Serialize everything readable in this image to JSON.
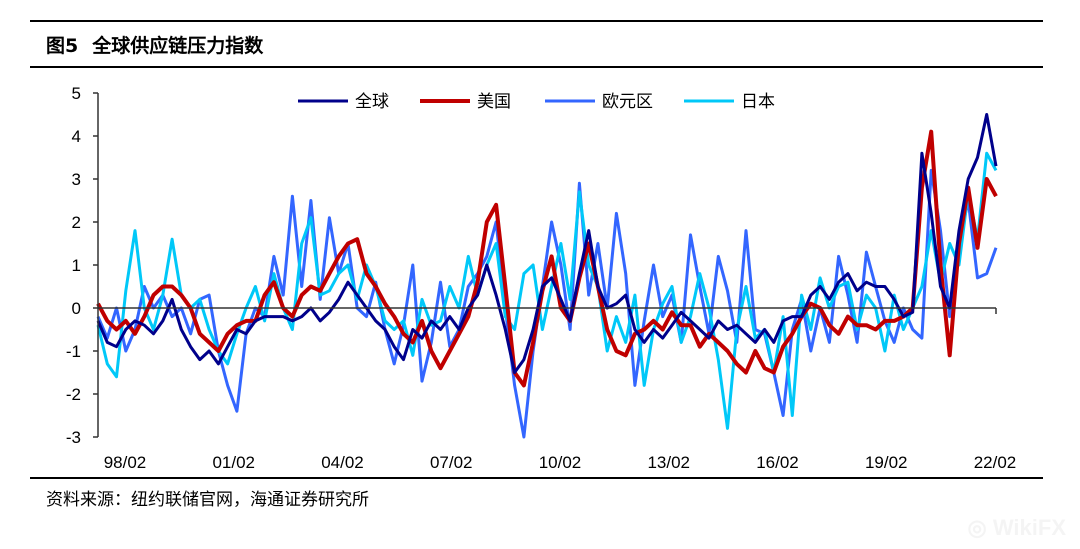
{
  "header": {
    "figure_number": "图5",
    "title": "全球供应链压力指数"
  },
  "footer": {
    "source": "资料来源：纽约联储官网，海通证券研究所"
  },
  "watermark": "WikiFX",
  "colors": {
    "global": "#00008B",
    "us": "#C00000",
    "euro": "#3366FF",
    "japan": "#00C8F8"
  },
  "chart_data": {
    "type": "line",
    "title": "全球供应链压力指数",
    "xlabel": "",
    "ylabel": "",
    "frequency": "quarterly, 1998Q1–2022Q2",
    "ylim": [
      -3,
      5
    ],
    "yticks": [
      "5",
      "4",
      "3",
      "2",
      "1",
      "0",
      "-1",
      "-2",
      "-3"
    ],
    "xticks": [
      "98/02",
      "01/02",
      "04/02",
      "07/02",
      "10/02",
      "13/02",
      "16/02",
      "19/02",
      "22/02"
    ],
    "legend": {
      "placement": "top-center"
    },
    "grid": false,
    "series": [
      {
        "name": "全球",
        "key": "global",
        "values": [
          -0.3,
          -0.8,
          -0.9,
          -0.5,
          -0.3,
          -0.4,
          -0.6,
          -0.3,
          0.2,
          -0.5,
          -0.9,
          -1.2,
          -1.0,
          -1.3,
          -0.9,
          -0.5,
          -0.6,
          -0.3,
          -0.2,
          -0.2,
          -0.2,
          -0.3,
          -0.2,
          0.0,
          -0.3,
          -0.1,
          0.2,
          0.6,
          0.3,
          0.0,
          -0.3,
          -0.5,
          -0.9,
          -1.2,
          -0.5,
          -0.7,
          -0.3,
          -0.5,
          -0.2,
          -0.5,
          0.0,
          0.3,
          1.0,
          0.3,
          -0.5,
          -1.5,
          -1.2,
          -0.5,
          0.5,
          0.7,
          0.2,
          -0.3,
          0.8,
          1.8,
          0.5,
          0.0,
          0.1,
          0.3,
          -0.5,
          -0.8,
          -0.5,
          -0.7,
          -0.4,
          -0.1,
          -0.3,
          -0.5,
          -0.7,
          -0.3,
          -0.5,
          -0.4,
          -0.6,
          -0.8,
          -0.5,
          -0.8,
          -0.3,
          -0.2,
          -0.2,
          0.3,
          0.5,
          0.2,
          0.6,
          0.8,
          0.4,
          0.6,
          0.5,
          0.5,
          0.2,
          -0.2,
          -0.1,
          3.6,
          2.2,
          0.5,
          0.0,
          1.8,
          3.0,
          3.5,
          4.5,
          3.3
        ]
      },
      {
        "name": "美国",
        "key": "us",
        "values": [
          0.1,
          -0.3,
          -0.5,
          -0.3,
          -0.6,
          -0.2,
          0.3,
          0.5,
          0.5,
          0.3,
          0.0,
          -0.6,
          -0.8,
          -1.0,
          -0.6,
          -0.4,
          -0.3,
          -0.3,
          0.3,
          0.6,
          0.0,
          -0.2,
          0.3,
          0.5,
          0.4,
          0.8,
          1.2,
          1.5,
          1.6,
          0.8,
          0.5,
          0.1,
          -0.2,
          -0.6,
          -0.8,
          -0.3,
          -1.0,
          -1.4,
          -1.0,
          -0.6,
          -0.2,
          0.6,
          2.0,
          2.4,
          0.5,
          -1.5,
          -1.8,
          -0.8,
          0.4,
          1.2,
          0.0,
          -0.3,
          0.7,
          1.5,
          0.5,
          -0.5,
          -1.0,
          -1.1,
          -0.6,
          -0.5,
          -0.3,
          -0.5,
          -0.1,
          -0.4,
          -0.4,
          -0.9,
          -0.6,
          -0.8,
          -1.0,
          -1.3,
          -1.5,
          -1.0,
          -1.4,
          -1.5,
          -0.9,
          -0.6,
          -0.2,
          0.1,
          0.0,
          -0.4,
          -0.6,
          -0.2,
          -0.4,
          -0.4,
          -0.5,
          -0.3,
          -0.3,
          -0.2,
          0.0,
          2.8,
          4.1,
          1.0,
          -1.1,
          1.5,
          2.8,
          1.4,
          3.0,
          2.6
        ]
      },
      {
        "name": "欧元区",
        "key": "euro",
        "values": [
          -0.2,
          -0.7,
          0.0,
          -1.0,
          -0.5,
          0.5,
          0.0,
          0.3,
          -0.2,
          0.0,
          -0.6,
          0.2,
          0.3,
          -1.0,
          -1.8,
          -2.4,
          -0.6,
          0.0,
          -0.2,
          1.2,
          0.3,
          2.6,
          0.5,
          2.5,
          0.2,
          2.1,
          0.8,
          1.5,
          0.0,
          -0.2,
          0.6,
          -0.5,
          -1.3,
          -0.4,
          1.0,
          -1.7,
          -0.8,
          0.6,
          -0.9,
          -0.5,
          0.5,
          0.8,
          1.2,
          2.0,
          0.0,
          -1.8,
          -3.0,
          -1.0,
          0.5,
          2.0,
          1.0,
          -0.5,
          2.9,
          0.3,
          1.5,
          0.0,
          2.2,
          0.8,
          -1.8,
          -0.3,
          1.0,
          -0.2,
          0.3,
          -0.8,
          1.7,
          0.5,
          -0.6,
          1.2,
          0.4,
          -0.8,
          1.8,
          -0.5,
          -0.6,
          -1.5,
          -2.5,
          -0.5,
          0.2,
          -1.0,
          0.0,
          -0.8,
          1.2,
          0.3,
          -0.8,
          1.3,
          0.5,
          -0.3,
          -0.8,
          0.0,
          -0.5,
          -0.7,
          3.2,
          1.8,
          -0.2,
          1.5,
          2.5,
          0.7,
          0.8,
          1.4
        ]
      },
      {
        "name": "日本",
        "key": "japan",
        "values": [
          -0.4,
          -1.3,
          -1.6,
          0.4,
          1.8,
          0.0,
          -0.5,
          0.3,
          1.6,
          0.3,
          0.0,
          0.2,
          -0.5,
          -1.0,
          -1.3,
          -0.6,
          0.0,
          0.5,
          -0.3,
          0.8,
          0.0,
          -0.5,
          1.5,
          2.1,
          0.3,
          0.4,
          0.8,
          1.0,
          0.2,
          1.0,
          0.5,
          -0.3,
          -0.5,
          -0.3,
          -1.1,
          0.2,
          -0.4,
          -0.3,
          0.5,
          0.0,
          1.2,
          0.3,
          1.0,
          1.5,
          -0.2,
          -0.5,
          0.8,
          1.0,
          -0.5,
          0.5,
          1.5,
          0.2,
          2.7,
          1.0,
          0.5,
          -1.0,
          -0.2,
          -0.8,
          0.3,
          -1.8,
          -0.5,
          0.1,
          0.5,
          -0.8,
          -0.2,
          0.8,
          0.0,
          -1.2,
          -2.8,
          -0.5,
          0.5,
          -0.7,
          -0.5,
          -1.5,
          -0.2,
          -2.5,
          0.3,
          -0.5,
          0.7,
          0.0,
          0.5,
          0.6,
          -0.5,
          0.3,
          0.0,
          -1.0,
          0.3,
          -0.5,
          0.0,
          0.5,
          1.8,
          0.6,
          1.5,
          1.0,
          2.7,
          1.6,
          3.6,
          3.2
        ]
      }
    ]
  }
}
